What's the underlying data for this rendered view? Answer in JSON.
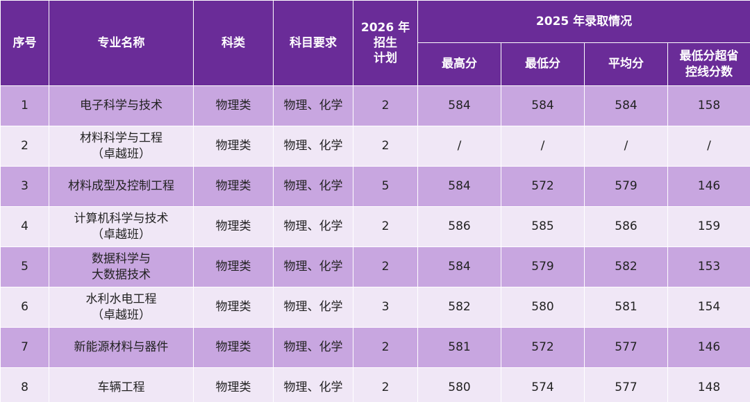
{
  "table": {
    "group_header": "2025 年录取情况",
    "columns": [
      "序号",
      "专业名称",
      "科类",
      "科目要求",
      "2026 年\n招生\n计划"
    ],
    "sub_columns": [
      "最高分",
      "最低分",
      "平均分",
      "最低分超省\n控线分数"
    ],
    "rows": [
      [
        1,
        "电子科学与技术",
        "物理类",
        "物理、化学",
        2,
        584,
        584,
        584,
        158
      ],
      [
        2,
        "材料科学与工程\n（卓越班）",
        "物理类",
        "物理、化学",
        2,
        "/",
        "/",
        "/",
        "/"
      ],
      [
        3,
        "材料成型及控制工程",
        "物理类",
        "物理、化学",
        5,
        584,
        572,
        579,
        146
      ],
      [
        4,
        "计算机科学与技术\n（卓越班）",
        "物理类",
        "物理、化学",
        2,
        586,
        585,
        586,
        159
      ],
      [
        5,
        "数据科学与\n大数据技术",
        "物理类",
        "物理、化学",
        2,
        584,
        579,
        582,
        153
      ],
      [
        6,
        "水利水电工程\n（卓越班）",
        "物理类",
        "物理、化学",
        3,
        582,
        580,
        581,
        154
      ],
      [
        7,
        "新能源材料与器件",
        "物理类",
        "物理、化学",
        2,
        581,
        572,
        577,
        146
      ],
      [
        8,
        "车辆工程",
        "物理类",
        "物理、化学",
        2,
        580,
        574,
        577,
        148
      ]
    ]
  }
}
